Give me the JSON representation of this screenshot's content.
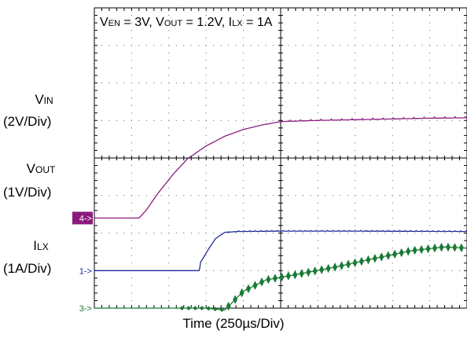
{
  "chart_data": {
    "type": "line",
    "title_parts": [
      {
        "t": "V",
        "sub": "EN"
      },
      {
        "t": " = 3V, V",
        "sub": "OUT"
      },
      {
        "t": " = 1.2V, I",
        "sub": "LX"
      },
      {
        "t": " = 1A",
        "sub": ""
      }
    ],
    "xlabel": "Time  (250µs/Div)",
    "x_unit_per_div": "250µs",
    "x_divisions": 10,
    "y_divisions": 8,
    "grid": true,
    "channels": [
      {
        "id": "vin",
        "marker": "4->",
        "name_main": "V",
        "name_sub": "IN",
        "scale": "(2V/Div)",
        "color": "#8b1a7e",
        "marker_bg": "#8b1a7e",
        "marker_color": "#ffffff",
        "x_div": [
          0,
          1.2,
          1.4,
          1.7,
          2.1,
          2.5,
          3.0,
          3.5,
          4.0,
          4.5,
          5.0,
          6.0,
          7.0,
          8.0,
          9.0,
          10.0
        ],
        "y_div": [
          2.4,
          2.4,
          2.62,
          3.05,
          3.55,
          3.98,
          4.32,
          4.58,
          4.76,
          4.88,
          4.97,
          5.0,
          5.02,
          5.04,
          5.06,
          5.07
        ]
      },
      {
        "id": "vout",
        "marker": "1->",
        "name_main": "V",
        "name_sub": "OUT",
        "scale": "(1V/Div)",
        "color": "#1f2a9c",
        "marker_bg": "none",
        "marker_color": "#1f2a9c",
        "x_div": [
          0,
          2.3,
          2.82,
          2.85,
          3.05,
          3.25,
          3.5,
          3.85,
          5.0,
          7.0,
          10.0
        ],
        "y_div": [
          1.0,
          1.0,
          1.0,
          1.22,
          1.55,
          1.85,
          2.02,
          2.04,
          2.05,
          2.05,
          2.04
        ],
        "noise": 0.02
      },
      {
        "id": "ilx",
        "marker": "3->",
        "name_main": "I",
        "name_sub": "LX",
        "scale": "(1A/Div)",
        "color": "#1a7a35",
        "marker_bg": "none",
        "marker_color": "#1a7a35",
        "x_div": [
          0,
          2.35,
          3.0,
          3.5,
          4.0,
          4.6,
          5.5,
          6.5,
          7.5,
          8.5,
          9.4,
          10.0
        ],
        "y_div": [
          -0.05,
          -0.05,
          -0.05,
          -0.1,
          0.4,
          0.7,
          0.86,
          1.05,
          1.27,
          1.48,
          1.58,
          1.55
        ],
        "ripple_start_div": 2.35,
        "ripple_amp_div": 0.12
      }
    ]
  }
}
